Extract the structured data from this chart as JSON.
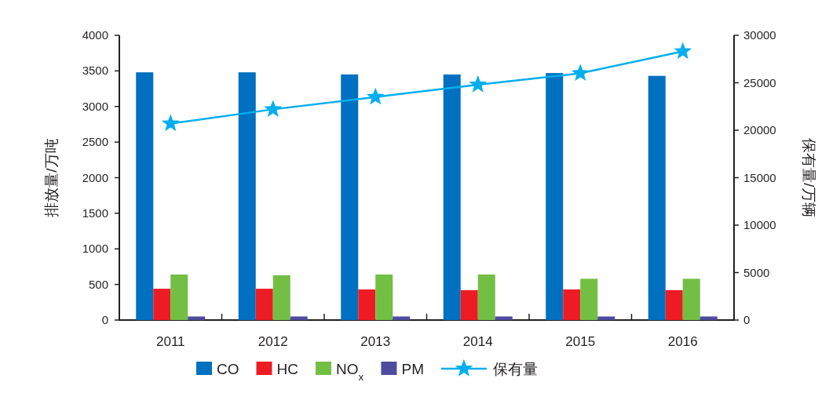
{
  "chart_data": {
    "type": "bar",
    "ylabel": "排放量/万吨",
    "y2label": "保有量/万辆",
    "categories": [
      "2011",
      "2012",
      "2013",
      "2014",
      "2015",
      "2016"
    ],
    "series": [
      {
        "name": "CO",
        "color": "#0070c0",
        "values": [
          3480,
          3480,
          3450,
          3450,
          3470,
          3430
        ]
      },
      {
        "name": "HC",
        "color": "#ed1c24",
        "values": [
          440,
          440,
          430,
          420,
          430,
          420
        ]
      },
      {
        "name": "NO$_{x}$",
        "color": "#72bf44",
        "values": [
          640,
          630,
          640,
          640,
          580,
          580
        ]
      },
      {
        "name": "PM",
        "color": "#4f4b9e",
        "values": [
          50,
          50,
          50,
          50,
          50,
          50
        ]
      },
      {
        "name": "保有量",
        "type": "line",
        "axis": "y2",
        "color": "#00aeef",
        "marker": "star",
        "values": [
          20700,
          22200,
          23500,
          24800,
          26000,
          28300
        ]
      }
    ],
    "ylim": [
      0,
      4000
    ],
    "yticks": [
      0,
      500,
      1000,
      1500,
      2000,
      2500,
      3000,
      3500,
      4000
    ],
    "y2lim": [
      0,
      30000
    ],
    "y2ticks": [
      0,
      5000,
      10000,
      15000,
      20000,
      25000,
      30000
    ],
    "grid": false,
    "legend": "bottom"
  }
}
